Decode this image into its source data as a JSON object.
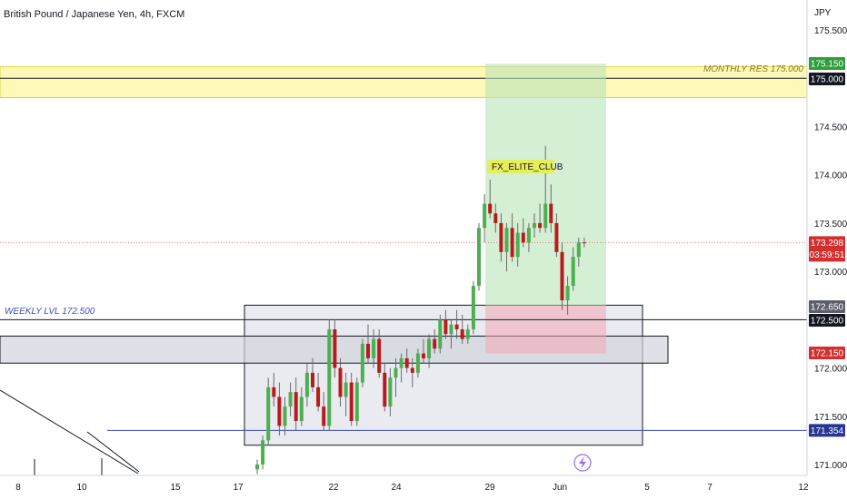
{
  "header": {
    "title": "British Pound / Japanese Yen, 4h, FXCM"
  },
  "annotations": {
    "weekly_level": "WEEKLY LVL 172.500",
    "monthly_res": "MONTHLY RES 175.000",
    "fx_label": "FX_ELITE_CLUB"
  },
  "price_axis": {
    "currency": "JPY",
    "ticks": [
      "175.500",
      "174.500",
      "174.000",
      "173.500",
      "173.000",
      "172.000",
      "171.500",
      "171.000"
    ]
  },
  "price_tags": {
    "target": "175.150",
    "monthly": "175.000",
    "last_price": "173.298",
    "countdown": "03:59:51",
    "entry": "172.650",
    "weekly": "172.500",
    "stop": "172.150",
    "lower_line": "171.354"
  },
  "time_axis": {
    "ticks": [
      "8",
      "10",
      "15",
      "17",
      "22",
      "24",
      "29",
      "Jun",
      "5",
      "7",
      "12"
    ]
  },
  "colors": {
    "up": "#26a69a",
    "down": "#ef5350",
    "up_body": "#4caf50",
    "down_body": "#b71c1c",
    "target_zone": "#c8e6c9",
    "stop_zone": "#f8bbd0",
    "resistance_zone": "#fff59d",
    "box_zone": "#e0e3eb",
    "lower_line": "#3f51b5",
    "last_price": "#d32f2f"
  },
  "chart_data": {
    "type": "candlestick",
    "title": "British Pound / Japanese Yen, 4h, FXCM",
    "ylabel": "JPY",
    "ylim": [
      170.9,
      175.9
    ],
    "levels": {
      "monthly_resistance": 175.0,
      "target": 175.15,
      "entry": 172.65,
      "weekly_level": 172.5,
      "stop": 172.15,
      "lower_line": 171.354,
      "last_price": 173.298
    },
    "zones": {
      "resistance": [
        174.8,
        175.12
      ],
      "consolidation_box": [
        171.2,
        172.65
      ],
      "weekly_box": [
        172.05,
        172.33
      ],
      "long_target": [
        172.65,
        175.15
      ],
      "long_stop": [
        172.15,
        172.65
      ]
    },
    "candles_ohlc": [
      [
        170.95,
        171.05,
        170.9,
        171.0
      ],
      [
        171.0,
        171.3,
        170.95,
        171.25
      ],
      [
        171.25,
        171.9,
        171.2,
        171.8
      ],
      [
        171.8,
        171.95,
        171.6,
        171.7
      ],
      [
        171.7,
        171.85,
        171.3,
        171.4
      ],
      [
        171.4,
        171.7,
        171.3,
        171.6
      ],
      [
        171.6,
        171.85,
        171.5,
        171.75
      ],
      [
        171.75,
        171.9,
        171.35,
        171.45
      ],
      [
        171.45,
        171.8,
        171.4,
        171.7
      ],
      [
        171.7,
        172.05,
        171.6,
        171.95
      ],
      [
        171.95,
        172.1,
        171.75,
        171.8
      ],
      [
        171.8,
        171.95,
        171.55,
        171.6
      ],
      [
        171.6,
        171.75,
        171.35,
        171.4
      ],
      [
        171.4,
        172.5,
        171.35,
        172.4
      ],
      [
        172.4,
        172.5,
        171.9,
        172.0
      ],
      [
        172.0,
        172.1,
        171.6,
        171.7
      ],
      [
        171.7,
        171.95,
        171.5,
        171.85
      ],
      [
        171.85,
        171.95,
        171.4,
        171.45
      ],
      [
        171.45,
        171.9,
        171.4,
        171.85
      ],
      [
        171.85,
        172.3,
        171.8,
        172.25
      ],
      [
        172.25,
        172.45,
        172.05,
        172.1
      ],
      [
        172.1,
        172.4,
        172.0,
        172.3
      ],
      [
        172.3,
        172.4,
        171.9,
        171.95
      ],
      [
        171.95,
        172.05,
        171.55,
        171.6
      ],
      [
        171.6,
        172.0,
        171.5,
        171.9
      ],
      [
        171.9,
        172.1,
        171.7,
        172.0
      ],
      [
        172.0,
        172.15,
        171.85,
        172.1
      ],
      [
        172.1,
        172.2,
        171.95,
        172.0
      ],
      [
        172.0,
        172.1,
        171.8,
        171.95
      ],
      [
        171.95,
        172.2,
        171.9,
        172.15
      ],
      [
        172.15,
        172.3,
        172.05,
        172.1
      ],
      [
        172.1,
        172.35,
        172.0,
        172.3
      ],
      [
        172.3,
        172.4,
        172.15,
        172.2
      ],
      [
        172.2,
        172.55,
        172.15,
        172.5
      ],
      [
        172.5,
        172.6,
        172.3,
        172.35
      ],
      [
        172.35,
        172.5,
        172.2,
        172.45
      ],
      [
        172.45,
        172.6,
        172.3,
        172.4
      ],
      [
        172.4,
        172.55,
        172.25,
        172.3
      ],
      [
        172.3,
        172.45,
        172.25,
        172.4
      ],
      [
        172.4,
        172.9,
        172.35,
        172.85
      ],
      [
        172.85,
        173.5,
        172.8,
        173.45
      ],
      [
        173.45,
        173.8,
        173.3,
        173.7
      ],
      [
        173.7,
        173.95,
        173.55,
        173.6
      ],
      [
        173.6,
        173.7,
        173.4,
        173.5
      ],
      [
        173.5,
        173.6,
        173.1,
        173.2
      ],
      [
        173.2,
        173.5,
        173.0,
        173.45
      ],
      [
        173.45,
        173.6,
        173.1,
        173.15
      ],
      [
        173.15,
        173.5,
        173.05,
        173.4
      ],
      [
        173.4,
        173.55,
        173.25,
        173.3
      ],
      [
        173.3,
        173.5,
        173.2,
        173.45
      ],
      [
        173.45,
        173.6,
        173.35,
        173.5
      ],
      [
        173.5,
        173.7,
        173.4,
        173.45
      ],
      [
        173.45,
        174.3,
        173.4,
        173.7
      ],
      [
        173.7,
        173.9,
        173.4,
        173.5
      ],
      [
        173.5,
        173.6,
        173.15,
        173.2
      ],
      [
        173.2,
        173.3,
        172.6,
        172.7
      ],
      [
        172.7,
        172.95,
        172.55,
        172.85
      ],
      [
        172.85,
        173.25,
        172.8,
        173.15
      ],
      [
        173.15,
        173.35,
        173.05,
        173.3
      ],
      [
        173.3,
        173.35,
        173.25,
        173.298
      ]
    ]
  }
}
